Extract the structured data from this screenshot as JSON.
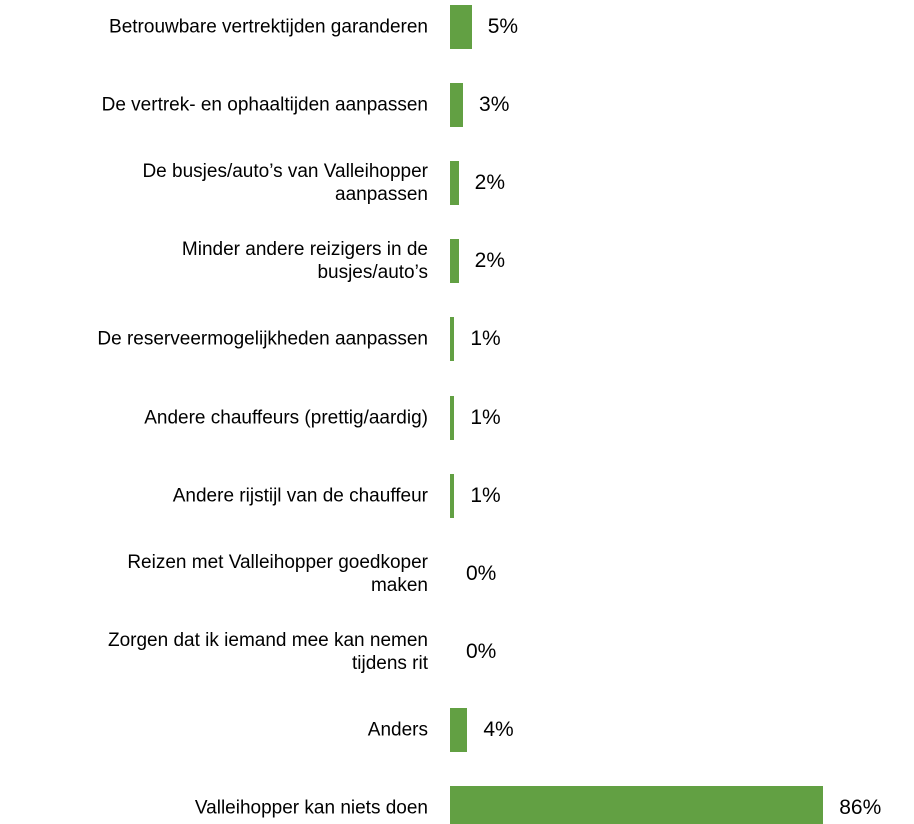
{
  "chart_data": {
    "type": "bar",
    "orientation": "horizontal",
    "color": "#62a043",
    "categories": [
      "Betrouwbare vertrektijden garanderen",
      "De vertrek- en ophaaltijden aanpassen",
      "De busjes/auto’s van Valleihopper\naanpassen",
      "Minder andere reizigers in de\nbusjes/auto’s",
      "De reserveermogelijkheden aanpassen",
      "Andere chauffeurs (prettig/aardig)",
      "Andere rijstijl van de chauffeur",
      "Reizen met Valleihopper goedkoper\nmaken",
      "Zorgen dat ik iemand mee kan nemen\ntijdens rit",
      "Anders",
      "Valleihopper kan niets doen"
    ],
    "values": [
      5,
      3,
      2,
      2,
      1,
      1,
      1,
      0,
      0,
      4,
      86
    ],
    "value_labels": [
      "5%",
      "3%",
      "2%",
      "2%",
      "1%",
      "1%",
      "1%",
      "0%",
      "0%",
      "4%",
      "86%"
    ]
  }
}
